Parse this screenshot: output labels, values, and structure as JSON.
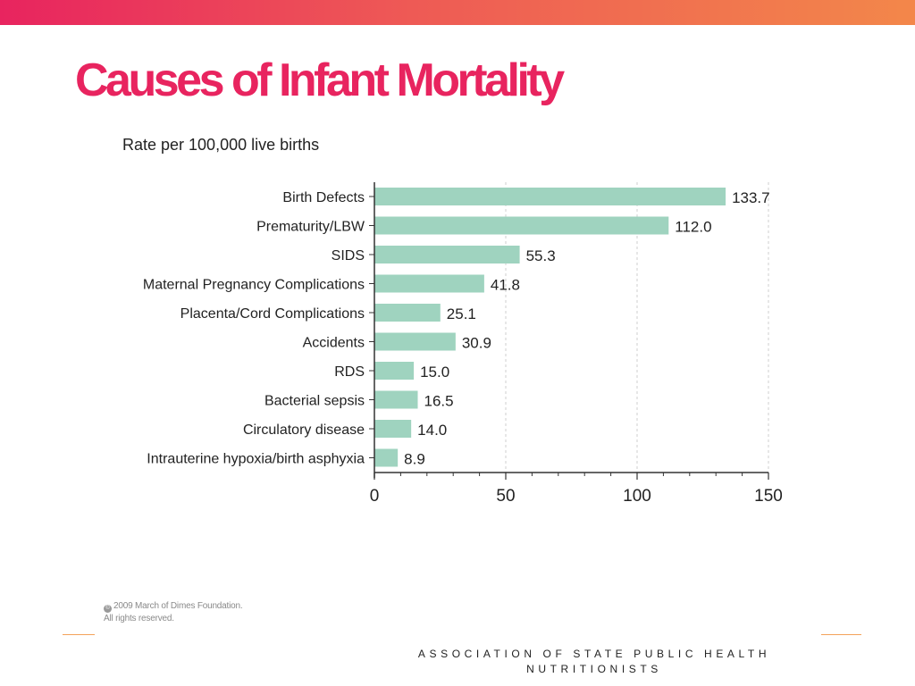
{
  "slide": {
    "title": "Causes of Infant Mortality",
    "copyright_line1": "2009 March of Dimes Foundation.",
    "copyright_line2": "All rights reserved.",
    "footer_line1": "ASSOCIATION OF STATE PUBLIC HEALTH",
    "footer_line2": "NUTRITIONISTS"
  },
  "colors": {
    "accent": "#e8245f",
    "bar": "#9fd3bf",
    "axis": "#333333",
    "grid": "#cfcfcf"
  },
  "chart_data": {
    "type": "bar",
    "orientation": "horizontal",
    "title": "Rate per 100,000 live births",
    "categories": [
      "Birth Defects",
      "Prematurity/LBW",
      "SIDS",
      "Maternal Pregnancy Complications",
      "Placenta/Cord Complications",
      "Accidents",
      "RDS",
      "Bacterial sepsis",
      "Circulatory disease",
      "Intrauterine hypoxia/birth asphyxia"
    ],
    "values": [
      133.7,
      112.0,
      55.3,
      41.8,
      25.1,
      30.9,
      15.0,
      16.5,
      14.0,
      8.9
    ],
    "value_labels": [
      "133.7",
      "112.0",
      "55.3",
      "41.8",
      "25.1",
      "30.9",
      "15.0",
      "16.5",
      "14.0",
      "8.9"
    ],
    "xlim": [
      0,
      150
    ],
    "xticks": [
      0,
      50,
      100,
      150
    ],
    "xtick_labels": [
      "0",
      "50",
      "100",
      "150"
    ],
    "minor_tick_step": 10,
    "grid": "vertical dashed at major ticks",
    "xlabel": "",
    "ylabel": ""
  }
}
